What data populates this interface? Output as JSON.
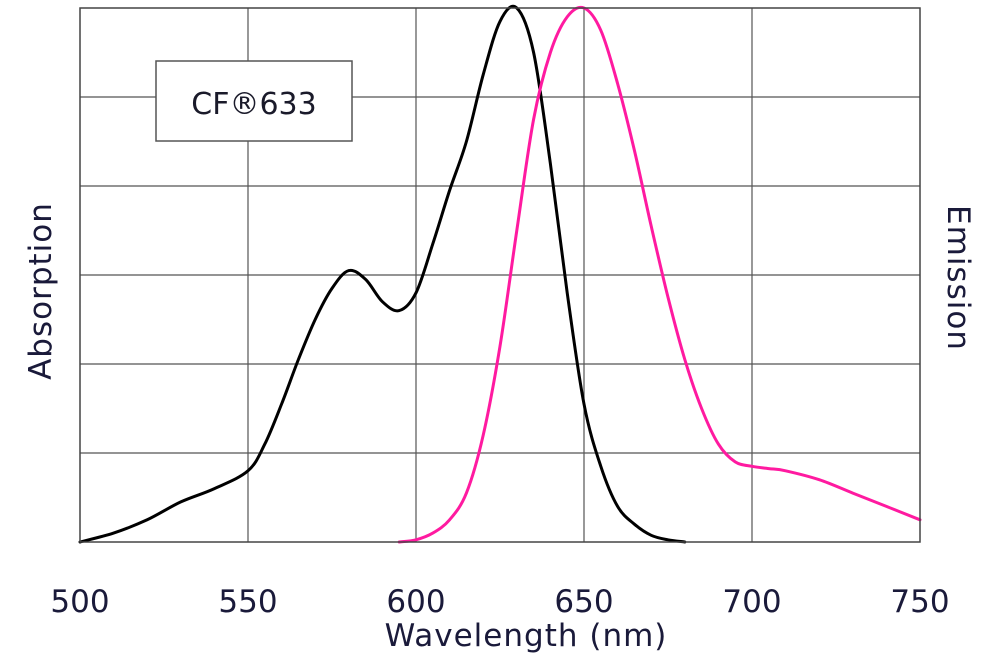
{
  "chart_data": {
    "type": "line",
    "title": "CF®633",
    "xlabel": "Wavelength (nm)",
    "ylabel_left": "Absorption",
    "ylabel_right": "Emission",
    "xlim": [
      500,
      750
    ],
    "ylim": [
      0,
      1.2
    ],
    "xticks": [
      500,
      550,
      600,
      650,
      700,
      750
    ],
    "grid": true,
    "legend": "none",
    "series": [
      {
        "name": "Absorption",
        "color": "#000000",
        "x": [
          500,
          510,
          520,
          530,
          540,
          550,
          555,
          560,
          565,
          570,
          575,
          580,
          585,
          590,
          595,
          600,
          605,
          610,
          615,
          620,
          625,
          630,
          635,
          640,
          645,
          650,
          655,
          660,
          665,
          670,
          675,
          680
        ],
        "y": [
          0.0,
          0.02,
          0.05,
          0.09,
          0.12,
          0.16,
          0.22,
          0.31,
          0.41,
          0.5,
          0.57,
          0.61,
          0.59,
          0.54,
          0.52,
          0.56,
          0.67,
          0.79,
          0.9,
          1.05,
          1.17,
          1.2,
          1.1,
          0.85,
          0.56,
          0.31,
          0.17,
          0.08,
          0.04,
          0.015,
          0.005,
          0.0
        ]
      },
      {
        "name": "Emission",
        "color": "#ff1aa0",
        "x": [
          595,
          600,
          605,
          610,
          615,
          620,
          625,
          630,
          635,
          640,
          645,
          650,
          655,
          660,
          665,
          670,
          675,
          680,
          685,
          690,
          695,
          700,
          705,
          710,
          720,
          730,
          740,
          750
        ],
        "y": [
          0.0,
          0.005,
          0.02,
          0.05,
          0.11,
          0.24,
          0.44,
          0.7,
          0.95,
          1.1,
          1.18,
          1.2,
          1.15,
          1.03,
          0.88,
          0.71,
          0.55,
          0.41,
          0.3,
          0.22,
          0.18,
          0.17,
          0.165,
          0.16,
          0.14,
          0.11,
          0.08,
          0.05
        ]
      }
    ]
  }
}
